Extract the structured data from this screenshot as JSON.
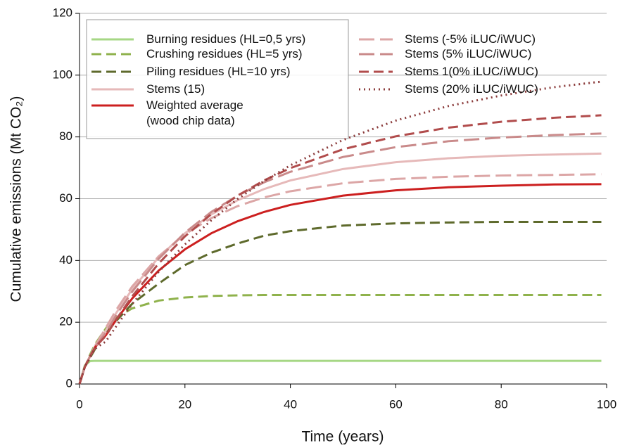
{
  "chart_data": {
    "type": "line",
    "xlabel": "Time (years)",
    "ylabel": "Cumulative emissions (Mt CO₂)",
    "x": [
      0,
      1,
      2,
      3,
      5,
      7,
      10,
      15,
      20,
      25,
      30,
      35,
      40,
      50,
      60,
      70,
      80,
      90,
      99
    ],
    "xlim": [
      0,
      100
    ],
    "xticks": [
      0,
      20,
      40,
      60,
      80,
      100
    ],
    "ylim": [
      0,
      120
    ],
    "yticks": [
      0,
      20,
      40,
      60,
      80,
      100,
      120
    ],
    "grid": true,
    "legend": "upper left",
    "series": [
      {
        "name": "Burning residues (HL=0,5 yrs)",
        "color": "#a6d785",
        "dash": "solid",
        "values": [
          0,
          6,
          7.4,
          7.5,
          7.5,
          7.5,
          7.5,
          7.5,
          7.5,
          7.5,
          7.5,
          7.5,
          7.5,
          7.5,
          7.5,
          7.5,
          7.5,
          7.5,
          7.5
        ]
      },
      {
        "name": "Crushing residues (HL=5 yrs)",
        "color": "#8fb24c",
        "dash": "dashed",
        "values": [
          0,
          5.5,
          9.5,
          13,
          18,
          21.5,
          24.5,
          27,
          28,
          28.5,
          28.7,
          28.8,
          28.8,
          28.8,
          28.8,
          28.8,
          28.8,
          28.8,
          28.8
        ]
      },
      {
        "name": "Piling residues (HL=10 yrs)",
        "color": "#5e6a2c",
        "dash": "dashed",
        "values": [
          0,
          5.5,
          8.5,
          11.5,
          16.5,
          20.5,
          26,
          32.5,
          38.5,
          42.5,
          45.5,
          48,
          49.5,
          51.3,
          52,
          52.3,
          52.5,
          52.5,
          52.5
        ]
      },
      {
        "name": "Stems (15)",
        "color": "#e6b9b9",
        "dash": "solid",
        "values": [
          0,
          5.5,
          9,
          12.5,
          17.3,
          23.1,
          30.7,
          41,
          48.8,
          54.9,
          59.5,
          63.1,
          65.9,
          69.6,
          71.8,
          73.1,
          73.9,
          74.3,
          74.6
        ]
      },
      {
        "name": "Weighted average\n(wood chip data)",
        "color": "#cc1f1f",
        "dash": "solid",
        "width": 3,
        "values": [
          0,
          5.5,
          9,
          12,
          15.8,
          20.9,
          27.7,
          36.7,
          43.6,
          48.8,
          52.7,
          55.7,
          58,
          61,
          62.7,
          63.7,
          64.2,
          64.6,
          64.7
        ]
      },
      {
        "name": "Stems (-5% iLUC/iWUC)",
        "color": "#dca6a6",
        "dash": "longdash",
        "values": [
          0,
          5.5,
          9,
          12.5,
          18.2,
          24.1,
          31.6,
          41.3,
          48.5,
          53.7,
          57.6,
          60.4,
          62.4,
          65,
          66.4,
          67.1,
          67.5,
          67.7,
          67.9
        ]
      },
      {
        "name": "Stems (5% iLUC/iWUC)",
        "color": "#c98a8a",
        "dash": "longdash",
        "values": [
          0,
          5.5,
          9,
          12,
          16.6,
          22.4,
          29.9,
          40.5,
          49,
          55.7,
          61,
          65.3,
          68.7,
          73.5,
          76.7,
          78.6,
          79.8,
          80.6,
          81.1
        ]
      },
      {
        "name": "Stems 1(0% iLUC/iWUC)",
        "color": "#b14c4c",
        "dash": "dashed",
        "values": [
          0,
          5.5,
          9,
          12,
          15.6,
          21,
          28.4,
          39,
          47.8,
          55,
          61,
          65.9,
          69.9,
          76,
          80.2,
          83,
          84.9,
          86.2,
          87
        ]
      },
      {
        "name": "Stems (20% iLUC/iWUC)",
        "color": "#8b3b3b",
        "dash": "dotted",
        "values": [
          0,
          5.5,
          8.5,
          11.5,
          13.8,
          18.8,
          25.9,
          36.3,
          45.2,
          53,
          59.9,
          65.7,
          70.8,
          79,
          85.3,
          90,
          93.4,
          96.1,
          97.9
        ]
      }
    ]
  }
}
